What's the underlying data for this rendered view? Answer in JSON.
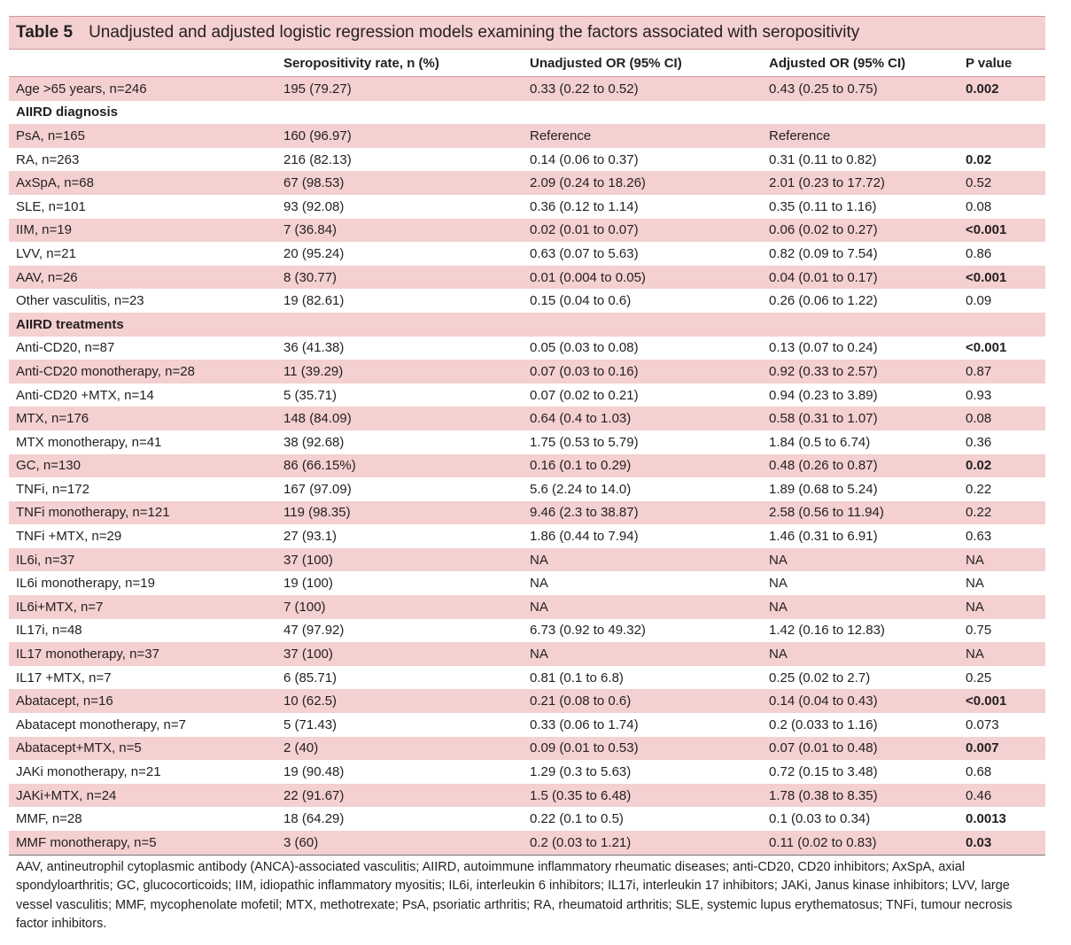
{
  "table": {
    "number": "Table 5",
    "title": "Unadjusted and adjusted logistic regression models examining the factors associated with seropositivity",
    "headers": [
      "",
      "Seropositivity rate, n (%)",
      "Unadjusted OR (95% CI)",
      "Adjusted OR (95% CI)",
      "P value"
    ],
    "rows": [
      {
        "cells": [
          "Age >65 years, n=246",
          "195 (79.27)",
          "0.33 (0.22 to 0.52)",
          "0.43 (0.25 to 0.75)",
          "0.002"
        ],
        "shade": true,
        "bold_p": true
      },
      {
        "cells": [
          "AIIRD diagnosis",
          "",
          "",
          "",
          ""
        ],
        "section": true
      },
      {
        "cells": [
          "PsA, n=165",
          "160 (96.97)",
          "Reference",
          "Reference",
          ""
        ],
        "shade": true
      },
      {
        "cells": [
          "RA, n=263",
          "216 (82.13)",
          "0.14 (0.06 to 0.37)",
          "0.31 (0.11 to 0.82)",
          "0.02"
        ],
        "bold_p": true
      },
      {
        "cells": [
          "AxSpA, n=68",
          "67 (98.53)",
          "2.09 (0.24 to 18.26)",
          "2.01 (0.23 to 17.72)",
          "0.52"
        ],
        "shade": true
      },
      {
        "cells": [
          "SLE, n=101",
          "93 (92.08)",
          "0.36 (0.12 to 1.14)",
          "0.35 (0.11 to 1.16)",
          "0.08"
        ]
      },
      {
        "cells": [
          "IIM, n=19",
          "7 (36.84)",
          "0.02 (0.01 to 0.07)",
          "0.06 (0.02 to 0.27)",
          "<0.001"
        ],
        "shade": true,
        "bold_p": true
      },
      {
        "cells": [
          "LVV, n=21",
          "20 (95.24)",
          "0.63 (0.07 to 5.63)",
          "0.82 (0.09 to 7.54)",
          "0.86"
        ]
      },
      {
        "cells": [
          "AAV, n=26",
          "8 (30.77)",
          "0.01 (0.004 to 0.05)",
          "0.04 (0.01 to 0.17)",
          "<0.001"
        ],
        "shade": true,
        "bold_p": true
      },
      {
        "cells": [
          "Other vasculitis, n=23",
          "19 (82.61)",
          "0.15 (0.04 to 0.6)",
          "0.26 (0.06 to 1.22)",
          "0.09"
        ]
      },
      {
        "cells": [
          "AIIRD treatments",
          "",
          "",
          "",
          ""
        ],
        "section": true,
        "shade": true
      },
      {
        "cells": [
          "Anti-CD20, n=87",
          "36 (41.38)",
          "0.05 (0.03 to 0.08)",
          "0.13 (0.07 to 0.24)",
          "<0.001"
        ],
        "bold_p": true
      },
      {
        "cells": [
          "Anti-CD20 monotherapy, n=28",
          "11 (39.29)",
          "0.07 (0.03 to 0.16)",
          "0.92 (0.33 to 2.57)",
          "0.87"
        ],
        "shade": true
      },
      {
        "cells": [
          "Anti-CD20 +MTX, n=14",
          "5 (35.71)",
          "0.07 (0.02 to 0.21)",
          "0.94 (0.23 to 3.89)",
          "0.93"
        ]
      },
      {
        "cells": [
          "MTX, n=176",
          "148 (84.09)",
          "0.64 (0.4 to 1.03)",
          "0.58 (0.31 to 1.07)",
          "0.08"
        ],
        "shade": true
      },
      {
        "cells": [
          "MTX monotherapy, n=41",
          "38 (92.68)",
          "1.75 (0.53 to 5.79)",
          "1.84 (0.5 to 6.74)",
          "0.36"
        ]
      },
      {
        "cells": [
          "GC, n=130",
          "86 (66.15%)",
          "0.16 (0.1 to 0.29)",
          "0.48 (0.26 to 0.87)",
          "0.02"
        ],
        "shade": true,
        "bold_p": true
      },
      {
        "cells": [
          "TNFi, n=172",
          "167 (97.09)",
          " 5.6 (2.24 to 14.0)",
          "1.89 (0.68 to 5.24)",
          "0.22"
        ]
      },
      {
        "cells": [
          "TNFi monotherapy, n=121",
          "119 (98.35)",
          "9.46 (2.3 to 38.87)",
          "2.58 (0.56 to 11.94)",
          "0.22"
        ],
        "shade": true
      },
      {
        "cells": [
          "TNFi +MTX, n=29",
          "27 (93.1)",
          "1.86 (0.44 to 7.94)",
          "1.46 (0.31 to 6.91)",
          "0.63"
        ]
      },
      {
        "cells": [
          "IL6i, n=37",
          "37 (100)",
          "NA",
          "NA",
          "NA"
        ],
        "shade": true
      },
      {
        "cells": [
          "IL6i monotherapy, n=19",
          "19 (100)",
          "NA",
          "NA",
          "NA"
        ]
      },
      {
        "cells": [
          "IL6i+MTX, n=7",
          "7 (100)",
          "NA",
          "NA",
          "NA"
        ],
        "shade": true
      },
      {
        "cells": [
          "IL17i, n=48",
          "47 (97.92)",
          "6.73 (0.92 to 49.32)",
          "1.42 (0.16 to 12.83)",
          "0.75"
        ]
      },
      {
        "cells": [
          "IL17 monotherapy, n=37",
          "37 (100)",
          "NA",
          "NA",
          "NA"
        ],
        "shade": true
      },
      {
        "cells": [
          "IL17 +MTX, n=7",
          "6 (85.71)",
          "0.81 (0.1 to 6.8)",
          "0.25 (0.02 to 2.7)",
          "0.25"
        ]
      },
      {
        "cells": [
          "Abatacept, n=16",
          "10 (62.5)",
          "0.21 (0.08 to 0.6)",
          "0.14 (0.04 to 0.43)",
          "<0.001"
        ],
        "shade": true,
        "bold_p": true
      },
      {
        "cells": [
          "Abatacept monotherapy, n=7",
          "5 (71.43)",
          "0.33 (0.06 to 1.74)",
          " 0.2 (0.033 to 1.16)",
          "0.073"
        ]
      },
      {
        "cells": [
          "Abatacept+MTX, n=5",
          "2 (40)",
          "0.09 (0.01 to 0.53)",
          "0.07 (0.01 to 0.48)",
          "0.007"
        ],
        "shade": true,
        "bold_p": true
      },
      {
        "cells": [
          "JAKi monotherapy, n=21",
          "19 (90.48)",
          "1.29 (0.3 to 5.63)",
          "0.72 (0.15 to 3.48)",
          "0.68"
        ]
      },
      {
        "cells": [
          "JAKi+MTX, n=24",
          "22 (91.67)",
          " 1.5 (0.35 to 6.48)",
          "1.78 (0.38 to 8.35)",
          "0.46"
        ],
        "shade": true
      },
      {
        "cells": [
          "MMF, n=28",
          "18 (64.29)",
          "0.22 (0.1 to 0.5)",
          " 0.1 (0.03 to 0.34)",
          "0.0013"
        ],
        "bold_p": true
      },
      {
        "cells": [
          "MMF monotherapy, n=5",
          "3 (60)",
          " 0.2 (0.03 to 1.21)",
          "0.11 (0.02 to 0.83)",
          "0.03"
        ],
        "shade": true,
        "bold_p": true
      }
    ],
    "footnote": "AAV, antineutrophil cytoplasmic antibody (ANCA)-associated vasculitis; AIIRD, autoimmune inflammatory rheumatic diseases; anti-CD20, CD20 inhibitors; AxSpA, axial spondyloarthritis; GC, glucocorticoids; IIM, idiopathic inflammatory myositis; IL6i, interleukin 6 inhibitors; IL17i, interleukin 17 inhibitors; JAKi, Janus kinase inhibitors; LVV, large vessel vasculitis; MMF, mycophenolate mofetil; MTX, methotrexate; PsA, psoriatic arthritis; RA, rheumatoid arthritis; SLE, systemic lupus erythematosus; TNFi, tumour necrosis factor inhibitors."
  }
}
